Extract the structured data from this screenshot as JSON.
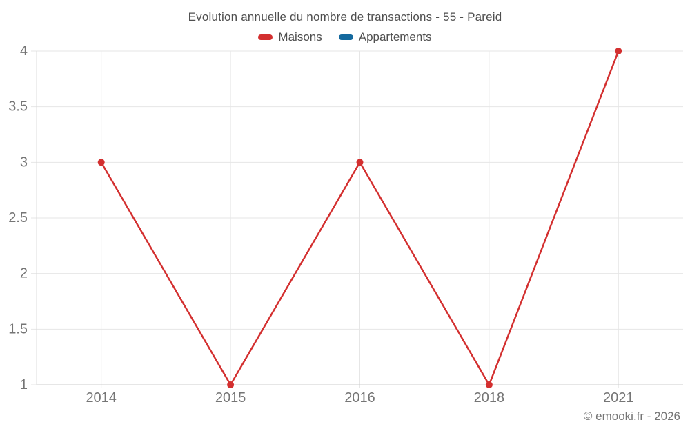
{
  "title": "Evolution annuelle du nombre de transactions - 55 - Pareid",
  "footer": "© emooki.fr - 2026",
  "legend": [
    {
      "label": "Maisons",
      "color": "#d32f2f"
    },
    {
      "label": "Appartements",
      "color": "#14699e"
    }
  ],
  "chart_data": {
    "type": "line",
    "title": "Evolution annuelle du nombre de transactions - 55 - Pareid",
    "categories": [
      "2014",
      "2015",
      "2016",
      "2018",
      "2021"
    ],
    "series": [
      {
        "name": "Maisons",
        "color": "#d32f2f",
        "values": [
          3,
          1,
          3,
          1,
          4
        ]
      },
      {
        "name": "Appartements",
        "color": "#14699e",
        "values": []
      }
    ],
    "xlabel": "",
    "ylabel": "",
    "ylim": [
      1,
      4
    ],
    "yticks": [
      1,
      1.5,
      2,
      2.5,
      3,
      3.5,
      4
    ],
    "ytick_labels": [
      "1",
      "1.5",
      "2",
      "2.5",
      "3",
      "3.5",
      "4"
    ],
    "grid": true,
    "legend_position": "top"
  },
  "colors": {
    "grid_line": "#e6e6e6",
    "axis_line_x": "#cccccc",
    "axis_line_y": "#dcdcdc",
    "tick_label": "#757575",
    "title_text": "#4f4f4f",
    "footer_text": "#757575",
    "background": "#ffffff"
  }
}
